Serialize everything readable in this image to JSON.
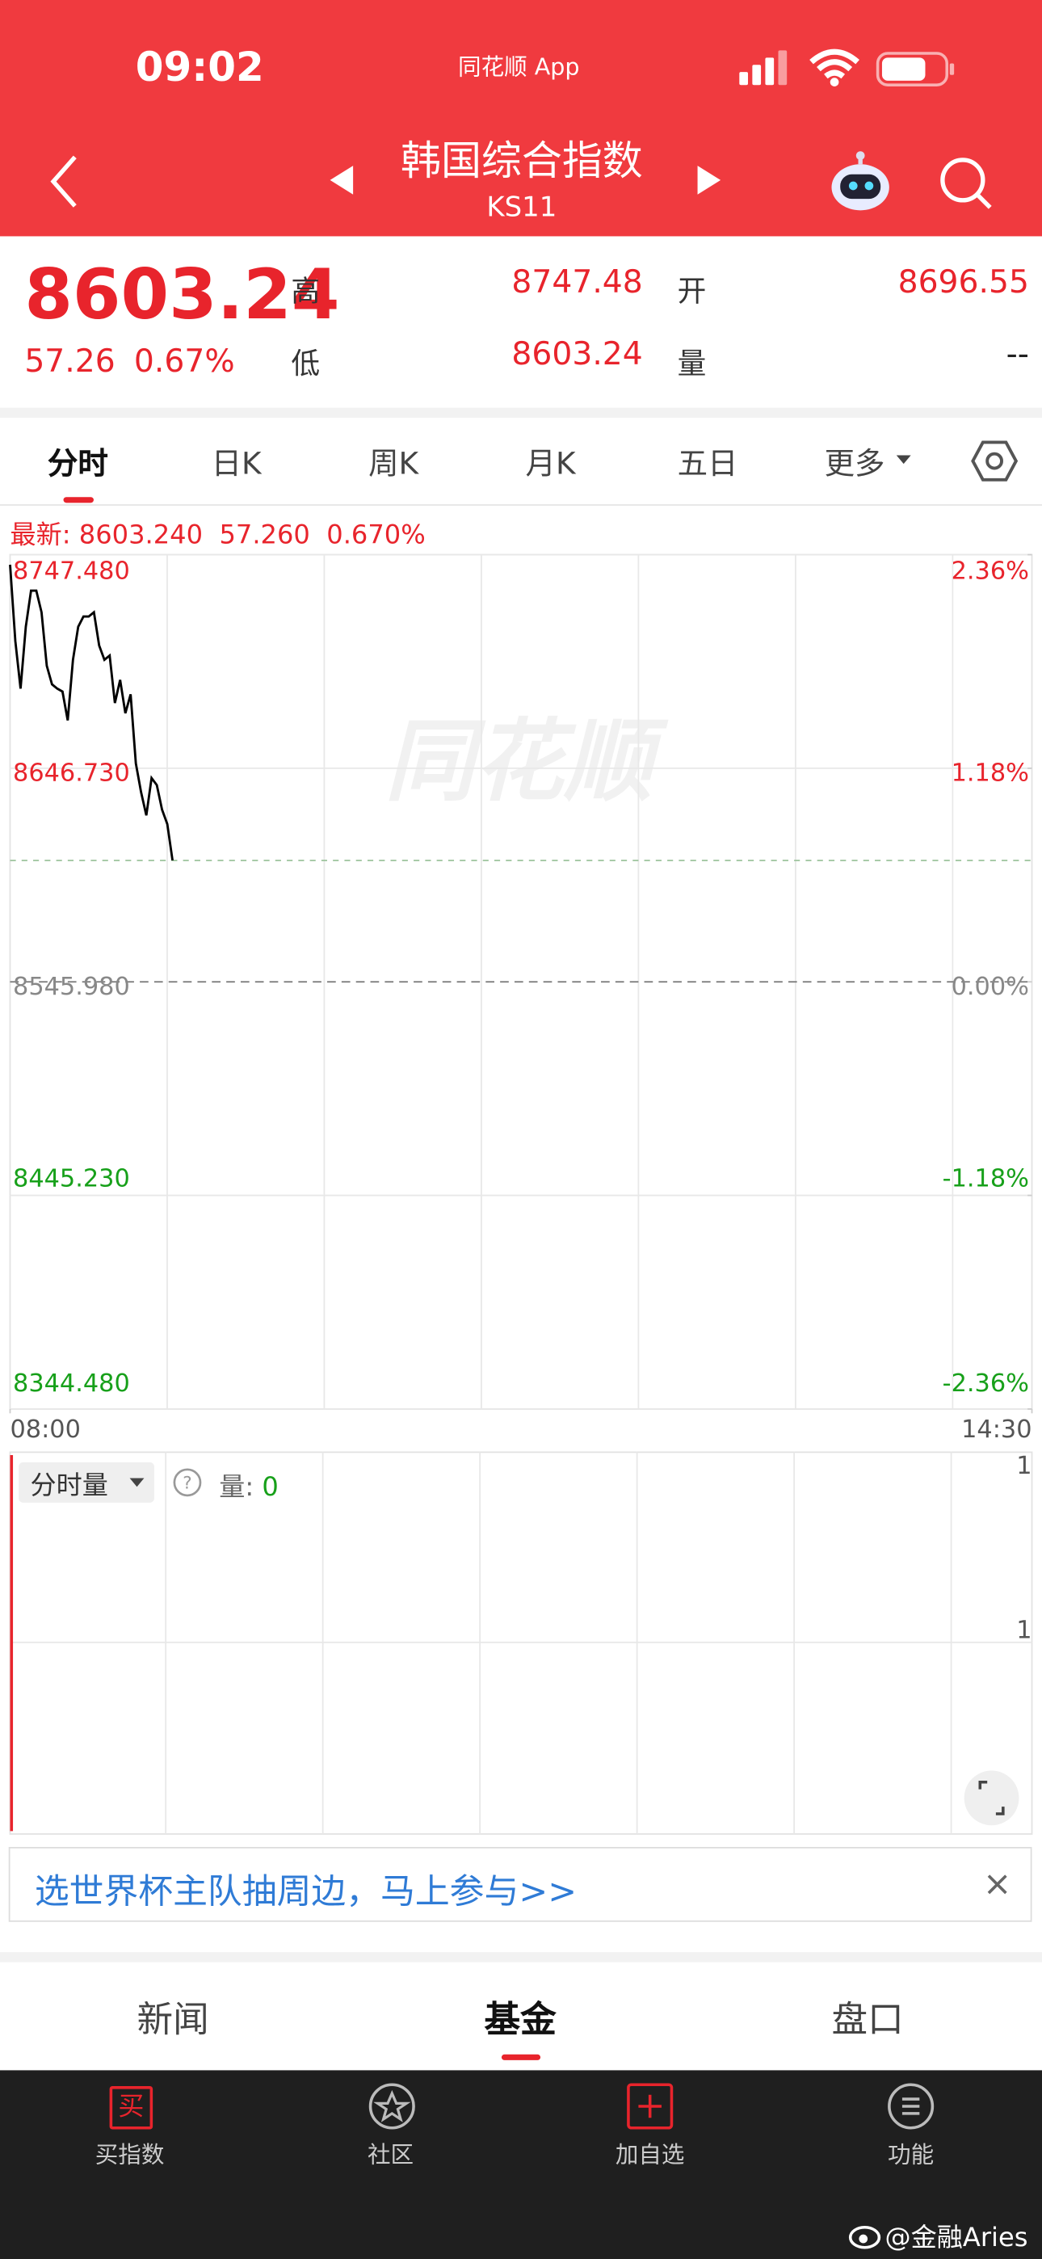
{
  "status_bar": {
    "time": "09:02",
    "app": "同花顺 App"
  },
  "header": {
    "title": "韩国综合指数",
    "code": "KS11"
  },
  "quote": {
    "price": "8603.24",
    "change": "57.26",
    "percent": "0.67%",
    "high_label": "高",
    "high": "8747.48",
    "low_label": "低",
    "low": "8603.24",
    "open_label": "开",
    "open": "8696.55",
    "volume_label": "量",
    "volume": "--"
  },
  "tabs": [
    "分时",
    "日K",
    "周K",
    "月K",
    "五日",
    "更多"
  ],
  "latest": {
    "label": "最新:",
    "price": "8603.240",
    "change": "57.260",
    "percent": "0.670%"
  },
  "chart_data": {
    "type": "line",
    "watermark": "同花顺",
    "color": "#000000",
    "x": [
      "08:00",
      "08:02",
      "08:04",
      "08:06",
      "08:08",
      "08:10",
      "08:12",
      "08:14",
      "08:16",
      "08:18",
      "08:20",
      "08:22",
      "08:24",
      "08:26",
      "08:28",
      "08:30",
      "08:32",
      "08:34",
      "08:36",
      "08:38",
      "08:40",
      "08:42",
      "08:44",
      "08:46",
      "08:48",
      "08:50",
      "08:52",
      "08:54",
      "08:56",
      "08:58",
      "09:00",
      "09:02"
    ],
    "values": [
      8742.72,
      8706.7,
      8684.3,
      8713.5,
      8730.5,
      8730.5,
      8720.3,
      8695.1,
      8686.3,
      8684.3,
      8682.9,
      8669.3,
      8697.9,
      8713.5,
      8718.3,
      8718.3,
      8720.3,
      8704.6,
      8697.9,
      8699.9,
      8677.5,
      8688.4,
      8672.7,
      8681.6,
      8649.0,
      8635.4,
      8624.5,
      8642.1,
      8638.8,
      8627.2,
      8620.4,
      8603.24
    ],
    "xlim": [
      "08:00",
      "14:30"
    ],
    "xticks": [
      "08:00",
      "14:30"
    ],
    "ylim": [
      8344.48,
      8747.48
    ],
    "yticks": [
      {
        "value": 8747.48,
        "label": "8747.480"
      },
      {
        "value": 8646.73,
        "label": "8646.730"
      },
      {
        "value": 8545.98,
        "label": "8545.980"
      },
      {
        "value": 8445.23,
        "label": "8445.230"
      },
      {
        "value": 8344.48,
        "label": "8344.480"
      }
    ],
    "y2lim": [
      -2.36,
      2.36
    ],
    "y2ticks": [
      {
        "value": 2.36,
        "label": "2.36%"
      },
      {
        "value": 1.18,
        "label": "1.18%"
      },
      {
        "value": 0,
        "label": "0.00%"
      },
      {
        "value": -1.18,
        "label": "-1.18%"
      },
      {
        "value": -2.36,
        "label": "-2.36%"
      }
    ],
    "grid": true
  },
  "volume_panel": {
    "selector": "分时量",
    "volume_label": "量:",
    "volume": "0",
    "axis_labels": [
      "1",
      "1"
    ]
  },
  "banner": {
    "text": "选世界杯主队抽周边，马上参与>>"
  },
  "section_tabs": [
    "新闻",
    "基金",
    "盘口"
  ],
  "bottom_nav": {
    "buy_icon": "买",
    "labels": [
      "买指数",
      "社区",
      "加自选",
      "功能"
    ]
  },
  "watermark": "@金融Aries"
}
